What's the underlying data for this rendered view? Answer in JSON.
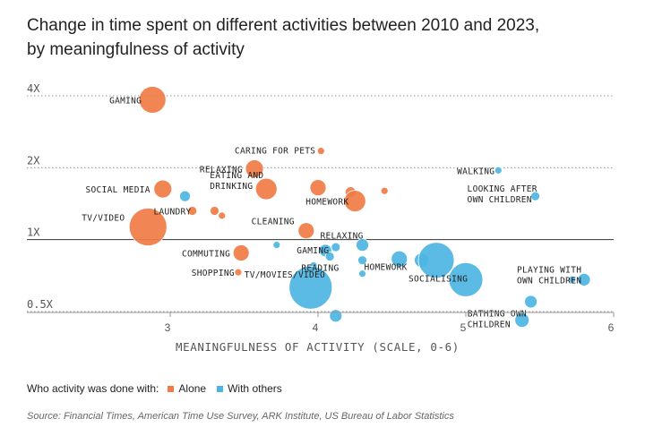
{
  "chart_data": {
    "type": "scatter",
    "title": "Change in time spent on different activities between 2010 and 2023,",
    "subtitle": "by meaningfulness of activity",
    "xlabel": "MEANINGFULNESS OF ACTIVITY (SCALE, 0-6)",
    "ylabel": "",
    "xlim": [
      2,
      6
    ],
    "ylim": [
      0.5,
      4
    ],
    "yscale": "log",
    "x_ticks": [
      {
        "value": 3,
        "label": "3"
      },
      {
        "value": 4,
        "label": "4"
      },
      {
        "value": 5,
        "label": "5"
      },
      {
        "value": 6,
        "label": "6"
      }
    ],
    "y_ticks": [
      {
        "value": 4,
        "label": "4X"
      },
      {
        "value": 2,
        "label": "2X"
      },
      {
        "value": 1,
        "label": "1X"
      },
      {
        "value": 0.5,
        "label": "0.5X"
      }
    ],
    "reference_line": 1,
    "size_note": "bubble size reflects relative time spent",
    "series": [
      {
        "name": "Alone",
        "color": "#f07c45",
        "points": [
          {
            "x": 2.88,
            "y": 3.85,
            "size": 15,
            "label": "GAMING"
          },
          {
            "x": 4.02,
            "y": 2.35,
            "size": 4,
            "label": "CARING FOR PETS"
          },
          {
            "x": 3.57,
            "y": 1.98,
            "size": 10,
            "label": "RELAXING"
          },
          {
            "x": 2.95,
            "y": 1.63,
            "size": 10,
            "label": "SOCIAL MEDIA"
          },
          {
            "x": 3.65,
            "y": 1.63,
            "size": 12,
            "label": "EATING AND DRINKING"
          },
          {
            "x": 4.0,
            "y": 1.65,
            "size": 9,
            "label": ""
          },
          {
            "x": 4.22,
            "y": 1.58,
            "size": 6,
            "label": ""
          },
          {
            "x": 4.45,
            "y": 1.6,
            "size": 4,
            "label": ""
          },
          {
            "x": 4.25,
            "y": 1.45,
            "size": 12,
            "label": "HOMEWORK"
          },
          {
            "x": 3.15,
            "y": 1.32,
            "size": 5,
            "label": ""
          },
          {
            "x": 3.3,
            "y": 1.32,
            "size": 5,
            "label": ""
          },
          {
            "x": 3.35,
            "y": 1.26,
            "size": 4,
            "label": ""
          },
          {
            "x": 2.85,
            "y": 1.13,
            "size": 21,
            "label": "TV/VIDEO"
          },
          {
            "x": 3.13,
            "y": 1.3,
            "size": 0,
            "label": "LAUNDRY"
          },
          {
            "x": 3.92,
            "y": 1.09,
            "size": 9,
            "label": "CLEANING"
          },
          {
            "x": 3.48,
            "y": 0.88,
            "size": 9,
            "label": "COMMUTING"
          },
          {
            "x": 3.46,
            "y": 0.73,
            "size": 4,
            "label": "SHOPPING"
          }
        ]
      },
      {
        "name": "With others",
        "color": "#4db5e3",
        "points": [
          {
            "x": 5.22,
            "y": 1.95,
            "size": 4,
            "label": "WALKING"
          },
          {
            "x": 5.47,
            "y": 1.52,
            "size": 5,
            "label": "LOOKING AFTER OWN CHILDREN"
          },
          {
            "x": 3.1,
            "y": 1.52,
            "size": 6,
            "label": ""
          },
          {
            "x": 3.72,
            "y": 0.95,
            "size": 4,
            "label": ""
          },
          {
            "x": 4.05,
            "y": 0.9,
            "size": 7,
            "label": "GAMING"
          },
          {
            "x": 4.12,
            "y": 0.93,
            "size": 5,
            "label": ""
          },
          {
            "x": 4.3,
            "y": 0.95,
            "size": 7,
            "label": "RELAXING"
          },
          {
            "x": 4.08,
            "y": 0.85,
            "size": 5,
            "label": ""
          },
          {
            "x": 4.3,
            "y": 0.82,
            "size": 5,
            "label": "HOMEWORK"
          },
          {
            "x": 4.55,
            "y": 0.83,
            "size": 9,
            "label": ""
          },
          {
            "x": 4.7,
            "y": 0.82,
            "size": 8,
            "label": ""
          },
          {
            "x": 4.8,
            "y": 0.82,
            "size": 20,
            "label": ""
          },
          {
            "x": 4.3,
            "y": 0.72,
            "size": 4,
            "label": "READING"
          },
          {
            "x": 3.97,
            "y": 0.78,
            "size": 4,
            "label": ""
          },
          {
            "x": 3.95,
            "y": 0.63,
            "size": 24,
            "label": "TV/MOVIES/VIDEO"
          },
          {
            "x": 5.0,
            "y": 0.68,
            "size": 19,
            "label": "SOCIALISING"
          },
          {
            "x": 5.8,
            "y": 0.68,
            "size": 7,
            "label": "PLAYING WITH OWN CHILDREN"
          },
          {
            "x": 5.72,
            "y": 0.68,
            "size": 4,
            "label": ""
          },
          {
            "x": 5.44,
            "y": 0.55,
            "size": 7,
            "label": ""
          },
          {
            "x": 4.12,
            "y": 0.48,
            "size": 7,
            "label": ""
          },
          {
            "x": 5.38,
            "y": 0.46,
            "size": 8,
            "label": "BATHING OWN CHILDREN"
          }
        ]
      }
    ],
    "legend": {
      "title": "Who activity was done with:",
      "placement": "bottom-left"
    },
    "source": "Source: Financial Times, American Time Use Survey, ARK Institute, US Bureau of Labor Statistics"
  }
}
